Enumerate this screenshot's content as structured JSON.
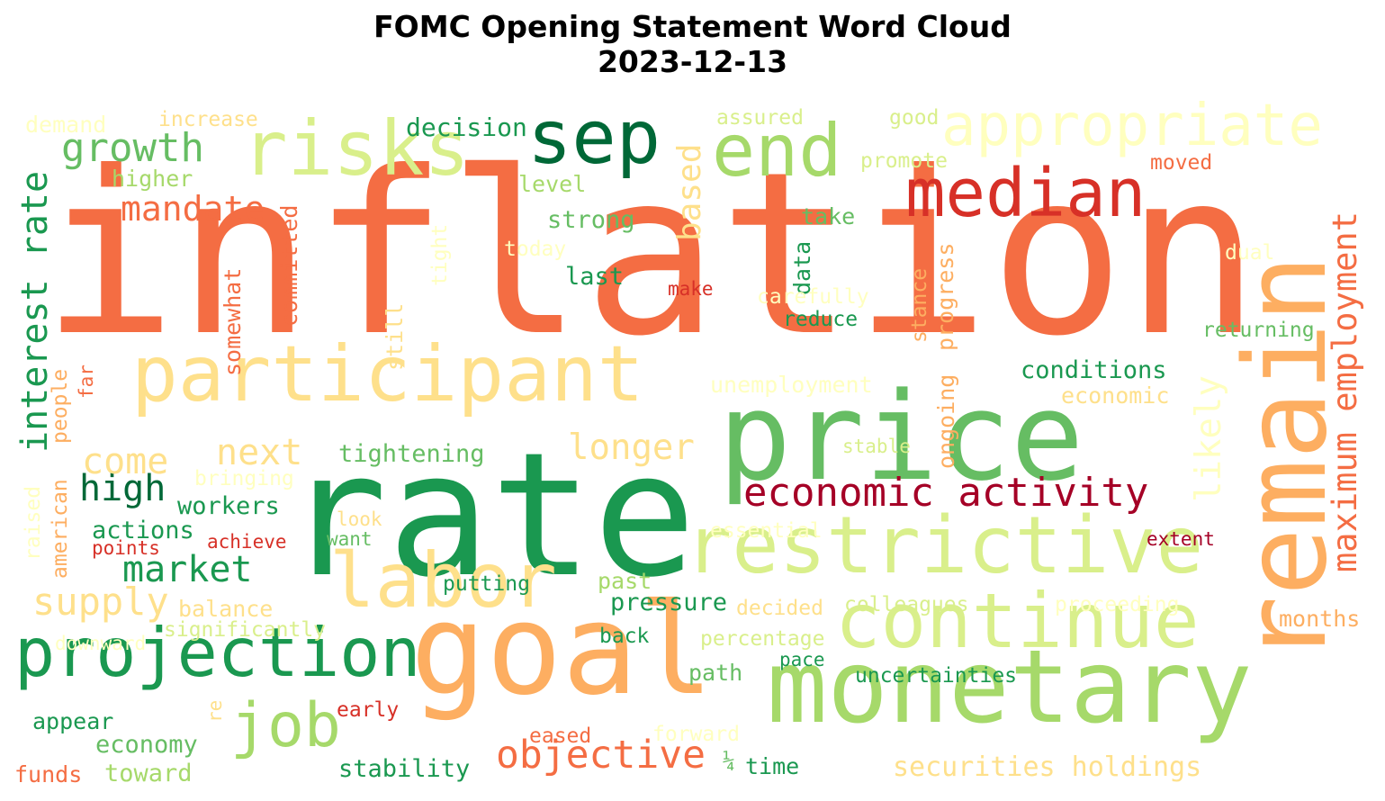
{
  "title": "FOMC Opening Statement Word Cloud",
  "subtitle": "2023-12-13",
  "colors": {
    "dark_red": "#a50026",
    "red": "#d73027",
    "orange": "#f46d43",
    "light_orange": "#fdae61",
    "peach": "#fee08b",
    "pale_yellow": "#ffffbf",
    "pale_green": "#d9ef8b",
    "light_green": "#a6d96a",
    "green": "#66bd63",
    "mid_green": "#1a9850",
    "dark_green": "#006837"
  },
  "words": [
    {
      "text": "inflation",
      "color": "#f46d43"
    },
    {
      "text": "rate",
      "color": "#1a9850"
    },
    {
      "text": "price",
      "color": "#66bd63"
    },
    {
      "text": "remain",
      "color": "#fdae61"
    },
    {
      "text": "monetary",
      "color": "#a6d96a"
    },
    {
      "text": "goal",
      "color": "#fdae61"
    },
    {
      "text": "participant",
      "color": "#fee08b"
    },
    {
      "text": "restrictive",
      "color": "#d9ef8b"
    },
    {
      "text": "continue",
      "color": "#d9ef8b"
    },
    {
      "text": "labor",
      "color": "#fee08b"
    },
    {
      "text": "projection",
      "color": "#1a9850"
    },
    {
      "text": "median",
      "color": "#d73027"
    },
    {
      "text": "risks",
      "color": "#d9ef8b"
    },
    {
      "text": "sep",
      "color": "#006837"
    },
    {
      "text": "end",
      "color": "#a6d96a"
    },
    {
      "text": "appropriate",
      "color": "#ffffbf"
    },
    {
      "text": "economic activity",
      "color": "#a50026"
    },
    {
      "text": "job",
      "color": "#a6d96a"
    },
    {
      "text": "objective",
      "color": "#f46d43"
    },
    {
      "text": "interest rate",
      "color": "#1a9850"
    },
    {
      "text": "maximum employment",
      "color": "#f46d43"
    },
    {
      "text": "growth",
      "color": "#66bd63"
    },
    {
      "text": "mandate",
      "color": "#f46d43"
    },
    {
      "text": "high",
      "color": "#006837"
    },
    {
      "text": "market",
      "color": "#1a9850"
    },
    {
      "text": "supply",
      "color": "#fee08b"
    },
    {
      "text": "come",
      "color": "#fee08b"
    },
    {
      "text": "next",
      "color": "#fee08b"
    },
    {
      "text": "longer",
      "color": "#fee08b"
    },
    {
      "text": "likely",
      "color": "#ffffbf"
    },
    {
      "text": "based",
      "color": "#fee08b"
    },
    {
      "text": "decision",
      "color": "#1a9850"
    },
    {
      "text": "securities holdings",
      "color": "#fee08b"
    },
    {
      "text": "conditions",
      "color": "#1a9850"
    },
    {
      "text": "pressure",
      "color": "#1a9850"
    },
    {
      "text": "tightening",
      "color": "#66bd63"
    },
    {
      "text": "workers",
      "color": "#1a9850"
    },
    {
      "text": "actions",
      "color": "#1a9850"
    },
    {
      "text": "strong",
      "color": "#66bd63"
    },
    {
      "text": "last",
      "color": "#1a9850"
    },
    {
      "text": "stability",
      "color": "#1a9850"
    },
    {
      "text": "economy",
      "color": "#66bd63"
    },
    {
      "text": "toward",
      "color": "#a6d96a"
    },
    {
      "text": "funds",
      "color": "#f46d43"
    },
    {
      "text": "appear",
      "color": "#1a9850"
    },
    {
      "text": "balance",
      "color": "#fee08b"
    },
    {
      "text": "unemployment",
      "color": "#ffffbf"
    },
    {
      "text": "economic",
      "color": "#fee08b"
    },
    {
      "text": "progress",
      "color": "#fdae61"
    },
    {
      "text": "ongoing",
      "color": "#fdae61"
    },
    {
      "text": "committed",
      "color": "#f46d43"
    },
    {
      "text": "somewhat",
      "color": "#f46d43"
    },
    {
      "text": "higher",
      "color": "#a6d96a"
    },
    {
      "text": "demand",
      "color": "#ffffbf"
    },
    {
      "text": "increase",
      "color": "#fee08b"
    },
    {
      "text": "assured",
      "color": "#d9ef8b"
    },
    {
      "text": "good",
      "color": "#d9ef8b"
    },
    {
      "text": "promote",
      "color": "#d9ef8b"
    },
    {
      "text": "moved",
      "color": "#f46d43"
    },
    {
      "text": "level",
      "color": "#a6d96a"
    },
    {
      "text": "take",
      "color": "#66bd63"
    },
    {
      "text": "data",
      "color": "#1a9850"
    },
    {
      "text": "today",
      "color": "#ffffbf"
    },
    {
      "text": "tight",
      "color": "#ffffbf"
    },
    {
      "text": "make",
      "color": "#d73027"
    },
    {
      "text": "carefully",
      "color": "#ffffbf"
    },
    {
      "text": "reduce",
      "color": "#1a9850"
    },
    {
      "text": "stance",
      "color": "#fdae61"
    },
    {
      "text": "dual",
      "color": "#ffffbf"
    },
    {
      "text": "returning",
      "color": "#66bd63"
    },
    {
      "text": "still",
      "color": "#fee08b"
    },
    {
      "text": "people",
      "color": "#fdae61"
    },
    {
      "text": "far",
      "color": "#f46d43"
    },
    {
      "text": "american",
      "color": "#fdae61"
    },
    {
      "text": "raised",
      "color": "#ffffbf"
    },
    {
      "text": "bringing",
      "color": "#ffffbf"
    },
    {
      "text": "stable",
      "color": "#d9ef8b"
    },
    {
      "text": "look",
      "color": "#fee08b"
    },
    {
      "text": "want",
      "color": "#66bd63"
    },
    {
      "text": "achieve",
      "color": "#d73027"
    },
    {
      "text": "points",
      "color": "#d73027"
    },
    {
      "text": "essential",
      "color": "#ffffbf"
    },
    {
      "text": "extent",
      "color": "#a50026"
    },
    {
      "text": "putting",
      "color": "#1a9850"
    },
    {
      "text": "past",
      "color": "#a6d96a"
    },
    {
      "text": "decided",
      "color": "#fee08b"
    },
    {
      "text": "colleagues",
      "color": "#d9ef8b"
    },
    {
      "text": "proceeding",
      "color": "#ffffbf"
    },
    {
      "text": "months",
      "color": "#fdae61"
    },
    {
      "text": "significantly",
      "color": "#d9ef8b"
    },
    {
      "text": "downward",
      "color": "#ffffbf"
    },
    {
      "text": "back",
      "color": "#1a9850"
    },
    {
      "text": "percentage",
      "color": "#d9ef8b"
    },
    {
      "text": "pace",
      "color": "#1a9850"
    },
    {
      "text": "uncertainties",
      "color": "#1a9850"
    },
    {
      "text": "path",
      "color": "#66bd63"
    },
    {
      "text": "re",
      "color": "#fee08b"
    },
    {
      "text": "early",
      "color": "#d73027"
    },
    {
      "text": "eased",
      "color": "#f46d43"
    },
    {
      "text": "forward",
      "color": "#ffffbf"
    },
    {
      "text": "¼",
      "color": "#66bd63"
    },
    {
      "text": "time",
      "color": "#1a9850"
    }
  ]
}
